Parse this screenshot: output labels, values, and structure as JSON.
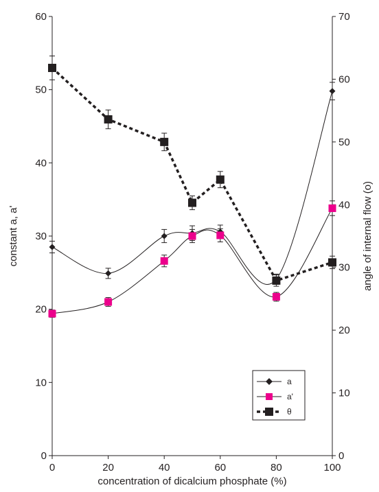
{
  "chart_data": {
    "type": "line",
    "title": "",
    "xlabel": "concentration of dicalcium phosphate (%)",
    "ylabel": "constant a, a'",
    "y2label": "angle of internal flow (o)",
    "xlim": [
      0,
      100
    ],
    "ylim": [
      0,
      60
    ],
    "y2lim": [
      0,
      70
    ],
    "xticks": [
      "0",
      "20",
      "40",
      "60",
      "80",
      "100"
    ],
    "yticks": [
      "0",
      "10",
      "20",
      "30",
      "40",
      "50",
      "60"
    ],
    "y2ticks": [
      "0",
      "10",
      "20",
      "30",
      "40",
      "50",
      "60",
      "70"
    ],
    "grid": false,
    "legend_position": "bottom-right",
    "series": [
      {
        "name": "a",
        "axis": "left",
        "marker": "diamond",
        "color": "#231f20",
        "line": "smooth-solid",
        "x": [
          0,
          20,
          40,
          50,
          60,
          80,
          100
        ],
        "y": [
          28.5,
          24.9,
          30.0,
          30.4,
          30.6,
          24.1,
          49.8
        ],
        "error": [
          0.8,
          0.7,
          0.9,
          1.0,
          0.9,
          0.7,
          1.2
        ]
      },
      {
        "name": "a'",
        "axis": "left",
        "marker": "square",
        "color": "#ec008c",
        "line": "smooth-solid",
        "x": [
          0,
          20,
          40,
          50,
          60,
          80,
          100
        ],
        "y": [
          19.4,
          21.0,
          26.6,
          30.0,
          30.1,
          21.7,
          33.8
        ],
        "error": [
          0.5,
          0.6,
          0.8,
          0.9,
          0.9,
          0.6,
          1.0
        ]
      },
      {
        "name": "θ",
        "axis": "right",
        "marker": "square",
        "color": "#231f20",
        "line": "dashed",
        "x": [
          0,
          20,
          40,
          50,
          60,
          80,
          100
        ],
        "y": [
          61.8,
          53.6,
          50.0,
          40.3,
          44.0,
          27.9,
          30.8
        ],
        "error": [
          1.9,
          1.5,
          1.4,
          1.1,
          1.3,
          0.9,
          1.0
        ]
      }
    ]
  }
}
